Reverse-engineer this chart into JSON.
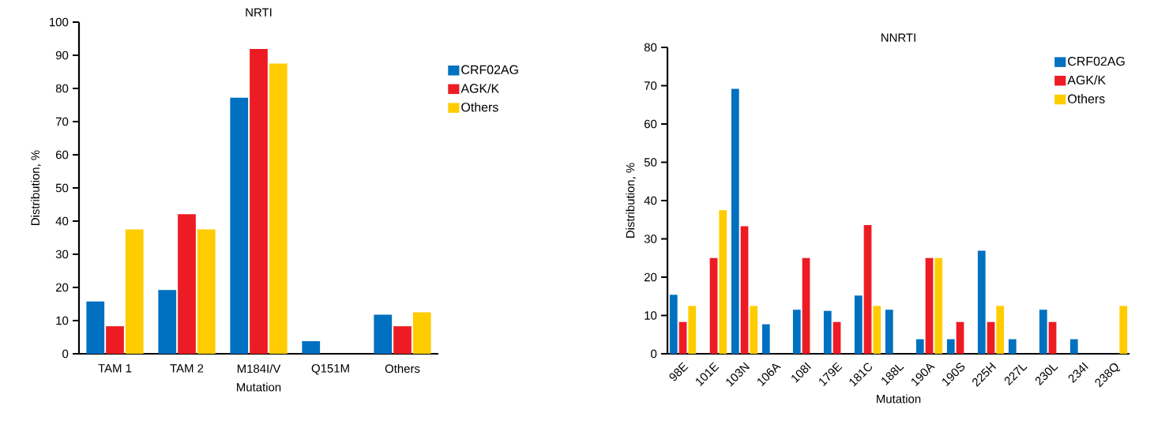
{
  "chart_data": [
    {
      "type": "bar",
      "title": "NRTI",
      "xlabel": "Mutation",
      "ylabel": "Distribution, %",
      "categories": [
        "TAM 1",
        "TAM 2",
        "M184I/V",
        "Q151M",
        "Others"
      ],
      "series": [
        {
          "name": "CRF02AG",
          "color": "#0070c0",
          "values": [
            15.8,
            19.2,
            77.2,
            3.8,
            11.8
          ]
        },
        {
          "name": "AGK/K",
          "color": "#ed1c24",
          "values": [
            8.3,
            42.1,
            91.9,
            0,
            8.3
          ]
        },
        {
          "name": "Others",
          "color": "#ffcc00",
          "values": [
            37.5,
            37.5,
            87.5,
            0,
            12.5
          ]
        }
      ],
      "ylim": [
        0,
        100
      ],
      "yticks": [
        0,
        10,
        20,
        30,
        40,
        50,
        60,
        70,
        80,
        90,
        100
      ],
      "legend": "right"
    },
    {
      "type": "bar",
      "title": "NNRTI",
      "xlabel": "Mutation",
      "ylabel": "Distribution, %",
      "categories": [
        "98E",
        "101E",
        "103N",
        "106A",
        "108I",
        "179E",
        "181C",
        "188L",
        "190A",
        "190S",
        "225H",
        "227L",
        "230L",
        "234I",
        "238Q"
      ],
      "series": [
        {
          "name": "CRF02AG",
          "color": "#0070c0",
          "values": [
            15.4,
            0,
            69.2,
            7.7,
            11.5,
            11.2,
            15.2,
            11.5,
            3.8,
            3.8,
            26.9,
            3.8,
            11.5,
            3.8,
            0
          ]
        },
        {
          "name": "AGK/K",
          "color": "#ed1c24",
          "values": [
            8.3,
            25,
            33.3,
            0,
            25,
            8.3,
            33.6,
            0,
            25,
            8.3,
            8.3,
            0,
            8.3,
            0,
            0
          ]
        },
        {
          "name": "Others",
          "color": "#ffcc00",
          "values": [
            12.5,
            37.5,
            12.5,
            0,
            0,
            0,
            12.5,
            0,
            25,
            0,
            12.5,
            0,
            0,
            0,
            12.5
          ]
        }
      ],
      "ylim": [
        0,
        80
      ],
      "yticks": [
        0,
        10,
        20,
        30,
        40,
        50,
        60,
        70,
        80
      ],
      "legend": "top right"
    }
  ]
}
